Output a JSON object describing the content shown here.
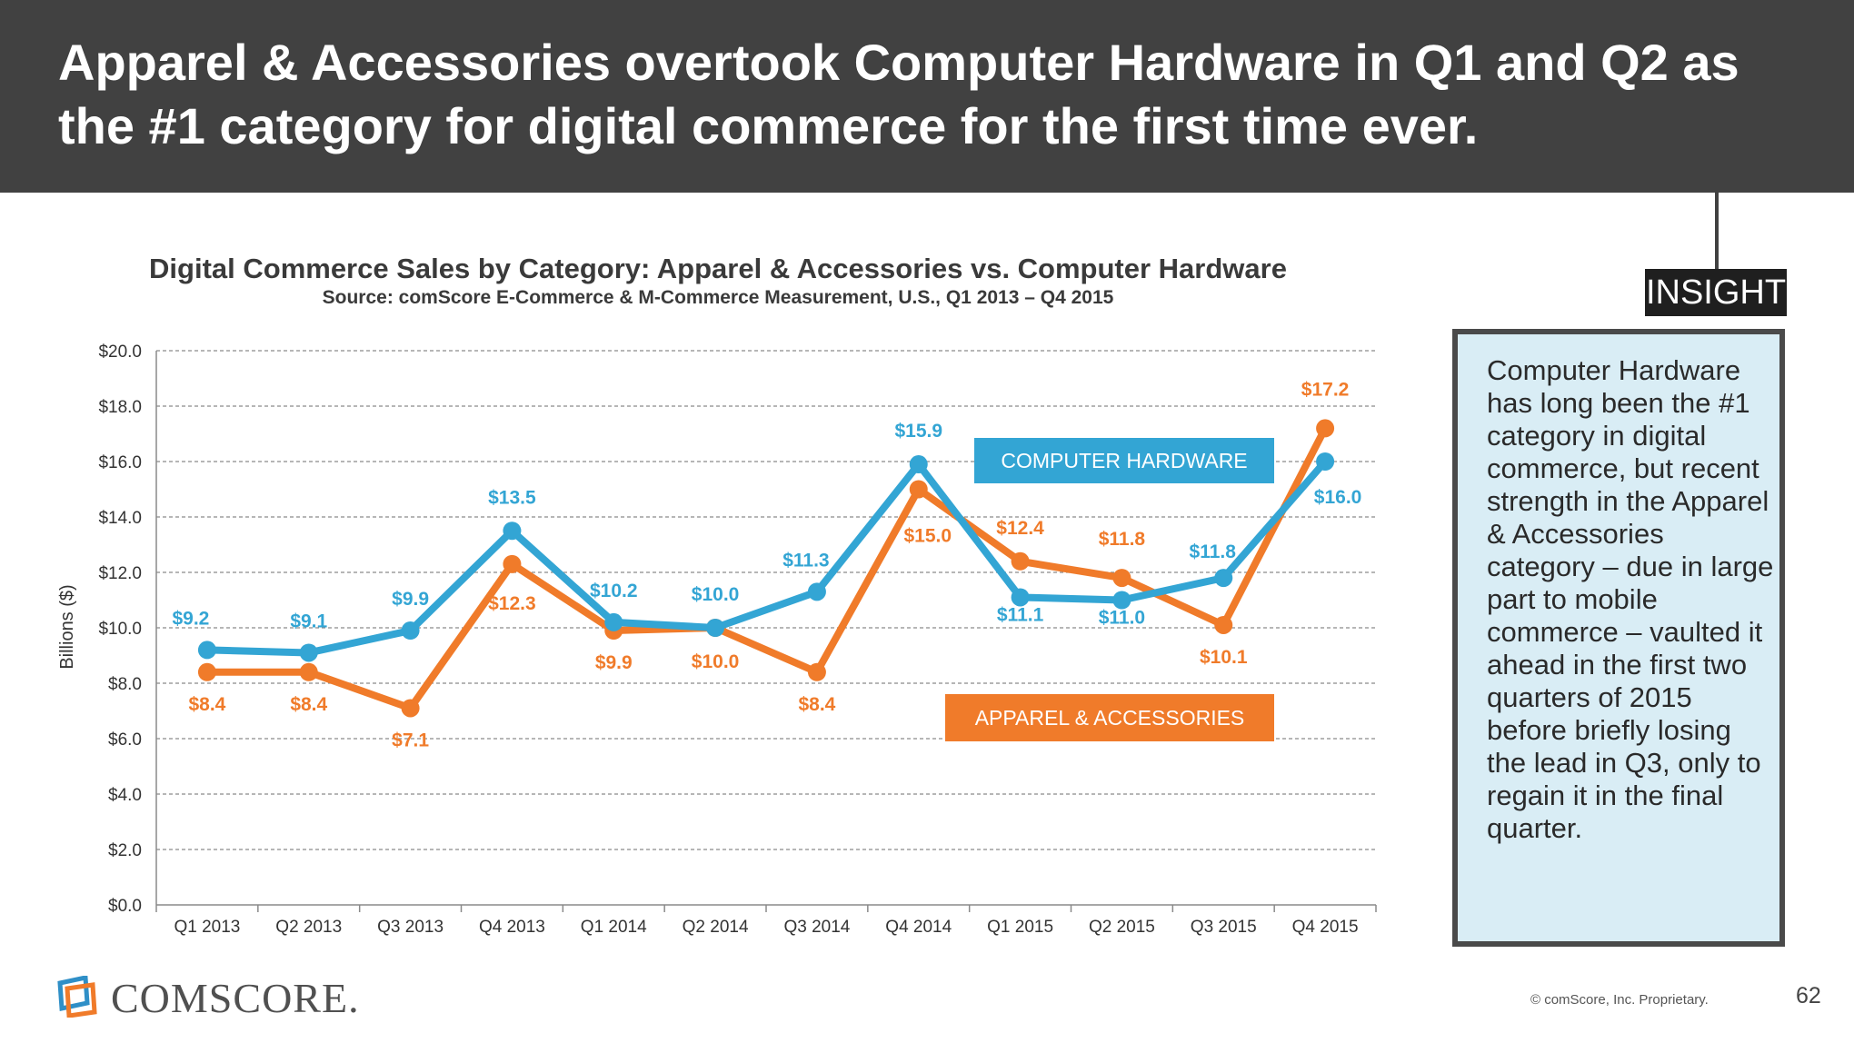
{
  "header": {
    "title": "Apparel & Accessories overtook Computer Hardware in Q1 and Q2 as the #1 category for digital commerce for the first time ever."
  },
  "chart_data": {
    "type": "line",
    "title": "Digital Commerce Sales by Category: Apparel & Accessories vs. Computer Hardware",
    "subtitle": "Source: comScore E-Commerce & M-Commerce Measurement, U.S., Q1 2013 – Q4 2015",
    "xlabel": "",
    "ylabel": "Billions ($)",
    "ylim": [
      0,
      20
    ],
    "ytick_labels": [
      "$0.0",
      "$2.0",
      "$4.0",
      "$6.0",
      "$8.0",
      "$10.0",
      "$12.0",
      "$14.0",
      "$16.0",
      "$18.0",
      "$20.0"
    ],
    "categories": [
      "Q1 2013",
      "Q2 2013",
      "Q3 2013",
      "Q4 2013",
      "Q1 2014",
      "Q2 2014",
      "Q3 2014",
      "Q4 2014",
      "Q1 2015",
      "Q2 2015",
      "Q3 2015",
      "Q4 2015"
    ],
    "grid": "horizontal dashed",
    "series": [
      {
        "name": "COMPUTER HARDWARE",
        "color": "#33a5d4",
        "values": [
          9.2,
          9.1,
          9.9,
          13.5,
          10.2,
          10.0,
          11.3,
          15.9,
          11.1,
          11.0,
          11.8,
          16.0
        ],
        "labels": [
          "$9.2",
          "$9.1",
          "$9.9",
          "$13.5",
          "$10.2",
          "$10.0",
          "$11.3",
          "$15.9",
          "$11.1",
          "$11.0",
          "$11.8",
          "$16.0"
        ]
      },
      {
        "name": "APPAREL & ACCESSORIES",
        "color": "#f07b2a",
        "values": [
          8.4,
          8.4,
          7.1,
          12.3,
          9.9,
          10.0,
          8.4,
          15.0,
          12.4,
          11.8,
          10.1,
          17.2
        ],
        "labels": [
          "$8.4",
          "$8.4",
          "$7.1",
          "$12.3",
          "$9.9",
          "$10.0",
          "$8.4",
          "$15.0",
          "$12.4",
          "$11.8",
          "$10.1",
          "$17.2"
        ]
      }
    ]
  },
  "insight": {
    "tag": "INSIGHT",
    "text": "Computer Hardware has long been the #1 category in digital commerce, but recent strength in the Apparel & Accessories category – due in large part to mobile commerce – vaulted it ahead in the first two quarters of 2015 before briefly losing the lead in Q3, only to regain it in the final quarter."
  },
  "footer": {
    "logo_text": "COMSCORE.",
    "copyright": "© comScore, Inc. Proprietary.",
    "page_number": "62"
  }
}
